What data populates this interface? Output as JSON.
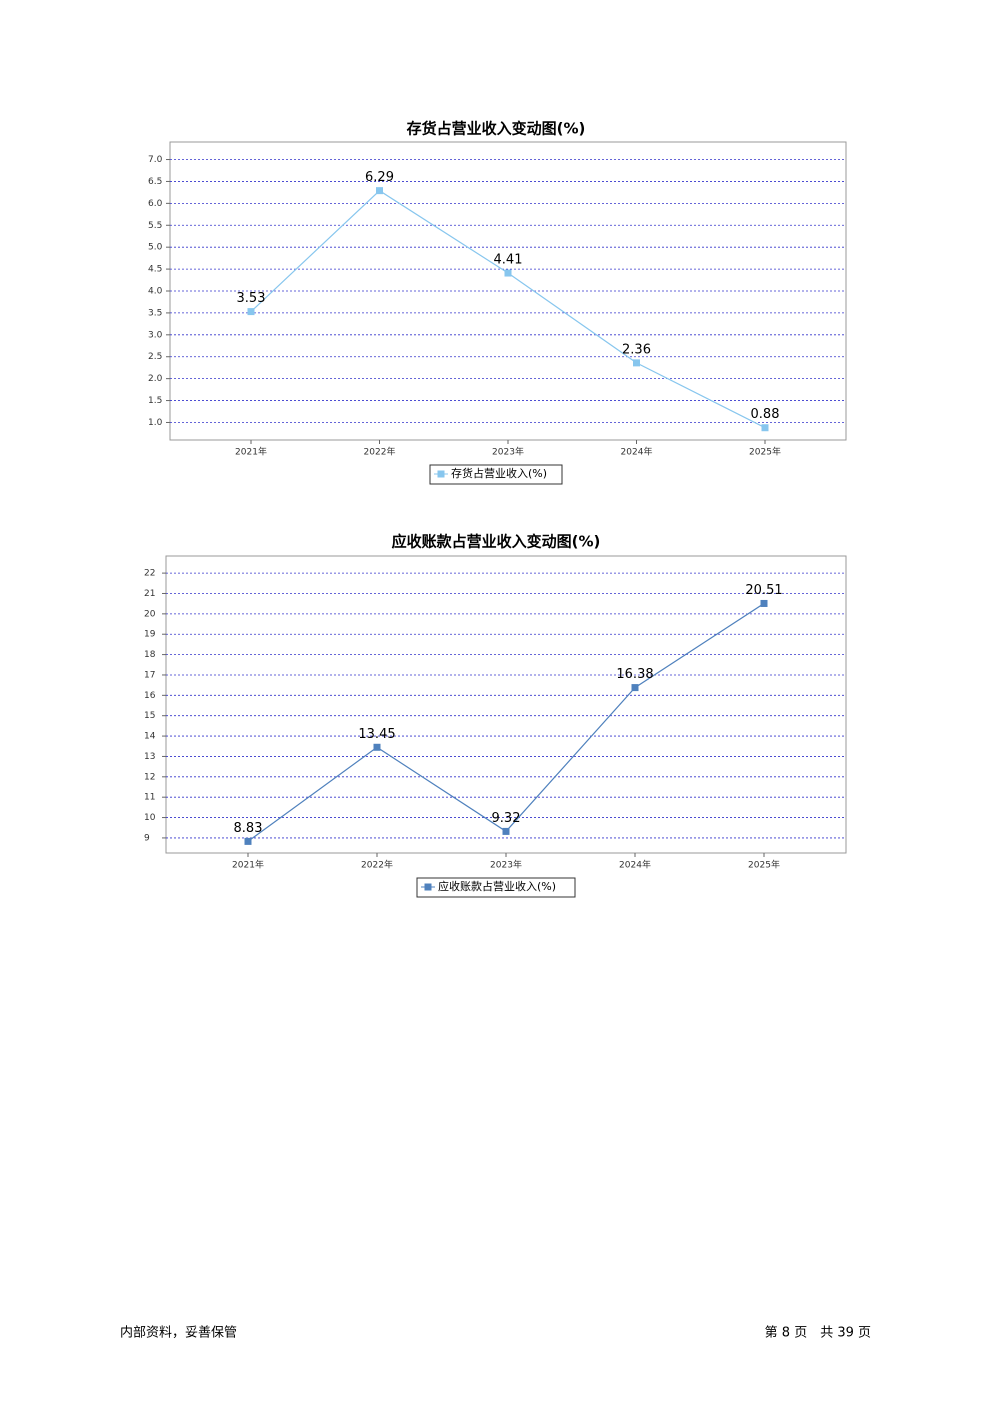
{
  "chart_data": [
    {
      "type": "line",
      "title": "存货占营业收入变动图(%)",
      "categories": [
        "2021年",
        "2022年",
        "2023年",
        "2024年",
        "2025年"
      ],
      "series": [
        {
          "name": "存货占营业收入(%)",
          "color": "#87c6ee",
          "values": [
            3.53,
            6.29,
            4.41,
            2.36,
            0.88
          ]
        }
      ],
      "ylim": [
        0.6,
        7.4
      ],
      "yticks": [
        {
          "value": 1,
          "label": "1.0"
        },
        1.5,
        {
          "value": 2,
          "label": "2.0"
        },
        2.5,
        {
          "value": 3,
          "label": "3.0"
        },
        3.5,
        {
          "value": 4,
          "label": "4.0"
        },
        4.5,
        {
          "value": 5,
          "label": "5.0"
        },
        5.5,
        {
          "value": 6,
          "label": "6.0"
        },
        6.5,
        {
          "value": 7,
          "label": "7.0"
        }
      ],
      "grid": true
    },
    {
      "type": "line",
      "title": "应收账款占营业收入变动图(%)",
      "categories": [
        "2021年",
        "2022年",
        "2023年",
        "2024年",
        "2025年"
      ],
      "series": [
        {
          "name": "应收账款占营业收入(%)",
          "color": "#4f81bd",
          "values": [
            8.83,
            13.45,
            9.32,
            16.38,
            20.51
          ]
        }
      ],
      "ylim": [
        8.26,
        22.84
      ],
      "yticks": [
        9,
        10,
        11,
        12,
        13,
        14,
        15,
        16,
        17,
        18,
        19,
        20,
        21,
        22
      ],
      "grid": true
    }
  ],
  "footer": {
    "left": "内部资料，妥善保管",
    "right": "第 8 页　共 39 页"
  }
}
